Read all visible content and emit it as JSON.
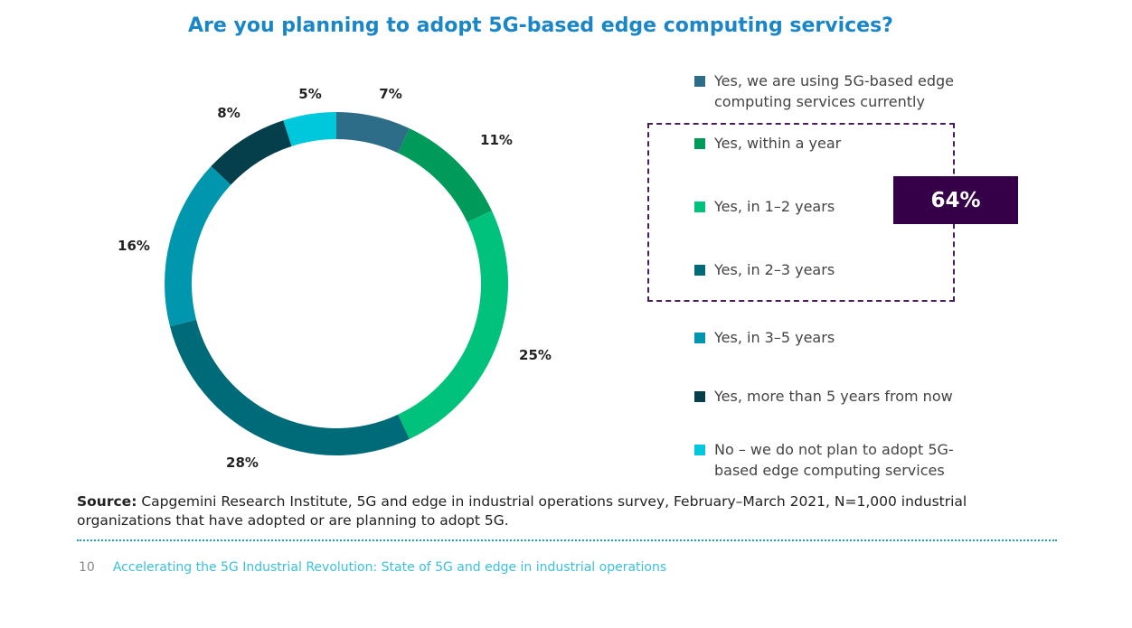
{
  "chart_data": {
    "type": "pie",
    "title": "Are you planning to adopt 5G-based edge computing services?",
    "donut": true,
    "legend_position": "right",
    "slices": [
      {
        "label": "Yes, we are using 5G-based edge computing services currently",
        "value": 7,
        "display": "7%",
        "color": "#2e6d87"
      },
      {
        "label": "Yes, within a year",
        "value": 11,
        "display": "11%",
        "color": "#009a5a"
      },
      {
        "label": "Yes, in 1–2 years",
        "value": 25,
        "display": "25%",
        "color": "#00c27c"
      },
      {
        "label": "Yes, in 2–3 years",
        "value": 28,
        "display": "28%",
        "color": "#006b78"
      },
      {
        "label": "Yes, in 3–5 years",
        "value": 16,
        "display": "16%",
        "color": "#0097ae"
      },
      {
        "label": "Yes, more than 5 years from now",
        "value": 8,
        "display": "8%",
        "color": "#053f4c"
      },
      {
        "label": "No – we do not plan to adopt 5G-based edge computing services",
        "value": 5,
        "display": "5%",
        "color": "#00c8dc"
      }
    ],
    "callout": {
      "text": "64%",
      "color": "#360048"
    }
  },
  "source": {
    "label": "Source:",
    "text": "Capgemini Research Institute, 5G and edge in industrial operations survey, February–March 2021, N=1,000 industrial organizations that have adopted or are planning to adopt 5G."
  },
  "footer": {
    "page": "10",
    "title": "Accelerating the 5G Industrial Revolution: State of 5G and edge in industrial operations"
  }
}
